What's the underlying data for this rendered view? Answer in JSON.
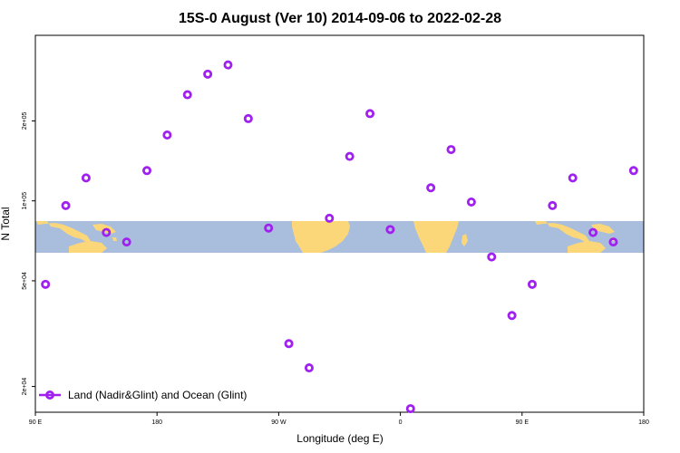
{
  "chart_data": {
    "type": "scatter",
    "title": "15S-0 August (Ver 10)   2014-09-06 to 2022-02-28",
    "xlabel": "Longitude (deg E)",
    "ylabel": "N Total",
    "x_scale": "linear",
    "y_scale": "log",
    "xlim": [
      90,
      540
    ],
    "ylim": [
      16000,
      420000
    ],
    "x_ticks": [
      {
        "value": 90,
        "label": "90 E"
      },
      {
        "value": 180,
        "label": "180"
      },
      {
        "value": 270,
        "label": "90 W"
      },
      {
        "value": 360,
        "label": "0"
      },
      {
        "value": 450,
        "label": "90 E"
      },
      {
        "value": 540,
        "label": "180"
      }
    ],
    "y_ticks": [
      {
        "value": 20000,
        "label": "2e+04"
      },
      {
        "value": 50000,
        "label": "5e+04"
      },
      {
        "value": 100000,
        "label": "1e+05"
      },
      {
        "value": 200000,
        "label": "2e+05"
      }
    ],
    "grid": false,
    "legend_position": "bottom-left",
    "series": [
      {
        "name": "Land (Nadir&Glint) and Ocean (Glint)",
        "color": "#a020f0",
        "marker": "open-circle",
        "x": [
          97.5,
          112.5,
          127.5,
          142.5,
          157.5,
          172.5,
          187.5,
          202.5,
          217.5,
          232.5,
          247.5,
          262.5,
          277.5,
          292.5,
          307.5,
          322.5,
          337.5,
          352.5,
          367.5,
          382.5,
          397.5,
          412.5,
          427.5,
          442.5,
          457.5,
          472.5,
          487.5,
          502.5,
          517.5,
          532.5
        ],
        "y": [
          48500,
          96000,
          122000,
          76000,
          70000,
          130000,
          177000,
          251000,
          300000,
          325000,
          204000,
          79000,
          29000,
          23500,
          86000,
          147000,
          213000,
          78000,
          16500,
          112000,
          156000,
          99000,
          61500,
          37000,
          48500,
          96000,
          122000,
          76000,
          70000,
          130000
        ]
      }
    ],
    "background_band": {
      "description": "world map strip",
      "ocean_color": "#a8bedc",
      "land_color": "#fcd77a"
    }
  }
}
